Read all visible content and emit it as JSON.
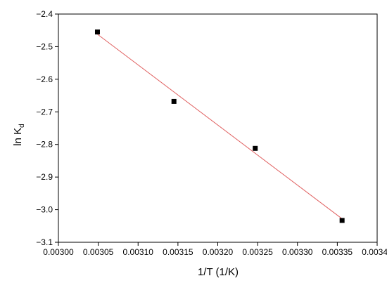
{
  "chart_data": {
    "type": "scatter",
    "xlabel": "1/T (1/K)",
    "ylabel_main": "ln K",
    "ylabel_sub": "d",
    "xlim": [
      0.003,
      0.0034
    ],
    "ylim": [
      -3.1,
      -2.4
    ],
    "x_ticks": [
      0.003,
      0.00305,
      0.0031,
      0.00315,
      0.0032,
      0.00325,
      0.0033,
      0.00335,
      0.0034
    ],
    "x_tick_labels": [
      "0.00300",
      "0.00305",
      "0.00310",
      "0.00315",
      "0.00320",
      "0.00325",
      "0.00330",
      "0.00335",
      "0.00340"
    ],
    "y_ticks": [
      -3.1,
      -3.0,
      -2.9,
      -2.8,
      -2.7,
      -2.6,
      -2.5,
      -2.4
    ],
    "y_tick_labels": [
      "−3.1",
      "−3.0",
      "−2.9",
      "−2.8",
      "−2.7",
      "−2.6",
      "−2.5",
      "−2.4"
    ],
    "points": [
      {
        "x": 0.003049,
        "y": -2.455
      },
      {
        "x": 0.003145,
        "y": -2.668
      },
      {
        "x": 0.003247,
        "y": -2.812
      },
      {
        "x": 0.003356,
        "y": -3.033
      }
    ],
    "fit_line": {
      "x": [
        0.003049,
        0.003356
      ],
      "y": [
        -2.462,
        -3.028
      ]
    },
    "colors": {
      "points": "#000000",
      "fit_line": "#e06060",
      "axes": "#000000"
    },
    "grid": false,
    "legend": "none"
  }
}
